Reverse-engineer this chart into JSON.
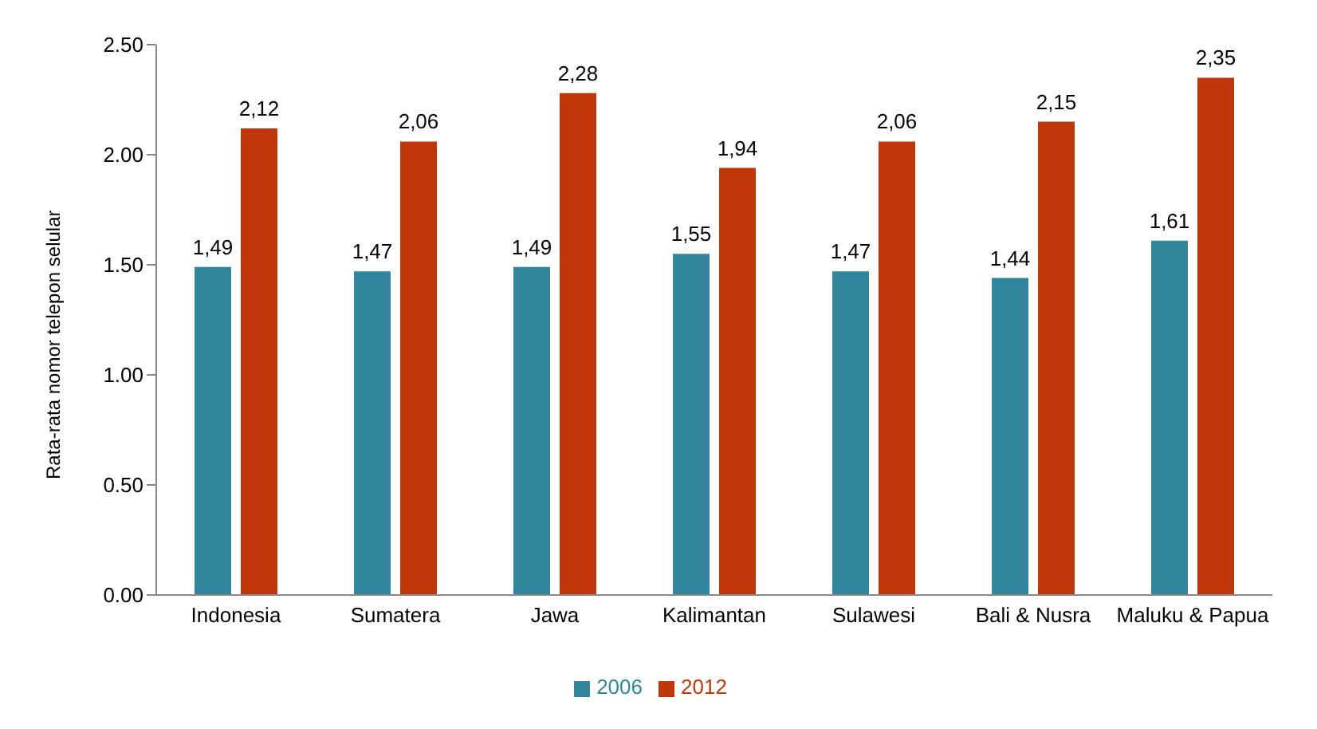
{
  "chart_data": {
    "type": "bar",
    "ylabel": "Rata-rata nomor telepon selular",
    "categories": [
      "Indonesia",
      "Sumatera",
      "Jawa",
      "Kalimantan",
      "Sulawesi",
      "Bali & Nusra",
      "Maluku & Papua"
    ],
    "series": [
      {
        "name": "2006",
        "color": "#31859c",
        "values": [
          1.49,
          1.47,
          1.49,
          1.55,
          1.47,
          1.44,
          1.61
        ],
        "value_labels": [
          "1,49",
          "1,47",
          "1,49",
          "1,55",
          "1,47",
          "1,44",
          "1,61"
        ]
      },
      {
        "name": "2012",
        "color": "#c0370a",
        "values": [
          2.12,
          2.06,
          2.28,
          1.94,
          2.06,
          2.15,
          2.35
        ],
        "value_labels": [
          "2,12",
          "2,06",
          "2,28",
          "1,94",
          "2,06",
          "2,15",
          "2,35"
        ]
      }
    ],
    "ylim": [
      0,
      2.5
    ],
    "yticks": [
      {
        "value": 0,
        "label": "0.00"
      },
      {
        "value": 0.5,
        "label": "0.50"
      },
      {
        "value": 1,
        "label": "1.00"
      },
      {
        "value": 1.5,
        "label": "1.50"
      },
      {
        "value": 2,
        "label": "2.00"
      },
      {
        "value": 2.5,
        "label": "2.50"
      }
    ],
    "grid": false,
    "legend": "bottom"
  }
}
